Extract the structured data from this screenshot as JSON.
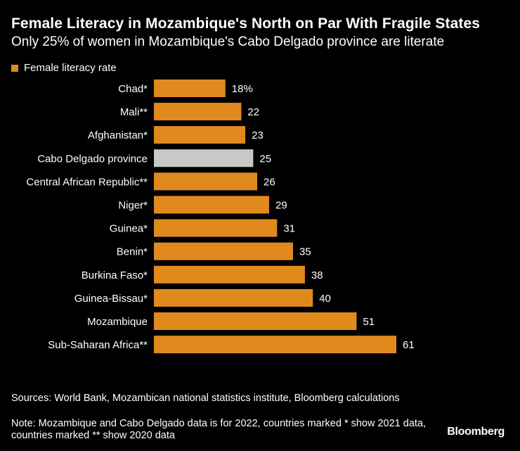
{
  "header": {
    "title": "Female Literacy in Mozambique's North on Par With Fragile States",
    "subtitle": "Only 25% of women in Mozambique's Cabo Delgado province are literate"
  },
  "legend": {
    "label": "Female literacy rate"
  },
  "chart_data": {
    "type": "bar",
    "orientation": "horizontal",
    "categories": [
      "Chad*",
      "Mali**",
      "Afghanistan*",
      "Cabo Delgado province",
      "Central African Republic**",
      "Niger*",
      "Guinea*",
      "Benin*",
      "Burkina Faso*",
      "Guinea-Bissau*",
      "Mozambique",
      "Sub-Saharan Africa**"
    ],
    "values": [
      18,
      22,
      23,
      25,
      26,
      29,
      31,
      35,
      38,
      40,
      51,
      61
    ],
    "value_labels": [
      "18%",
      "22",
      "23",
      "25",
      "26",
      "29",
      "31",
      "35",
      "38",
      "40",
      "51",
      "61"
    ],
    "series": [
      {
        "name": "Female literacy rate",
        "values": [
          18,
          22,
          23,
          25,
          26,
          29,
          31,
          35,
          38,
          40,
          51,
          61
        ]
      }
    ],
    "highlight_category": "Cabo Delgado province",
    "colors": {
      "bar": "#e08a1e",
      "highlight": "#c8c8c8"
    },
    "xlim": [
      0,
      61
    ],
    "grid": false,
    "legend_position": "top-left"
  },
  "footer": {
    "sources": "Sources: World Bank, Mozambican national statistics institute, Bloomberg calculations",
    "note": "Note: Mozambique and Cabo Delgado data is for 2022, countries marked * show 2021 data, countries marked ** show 2020 data",
    "brand": "Bloomberg"
  }
}
